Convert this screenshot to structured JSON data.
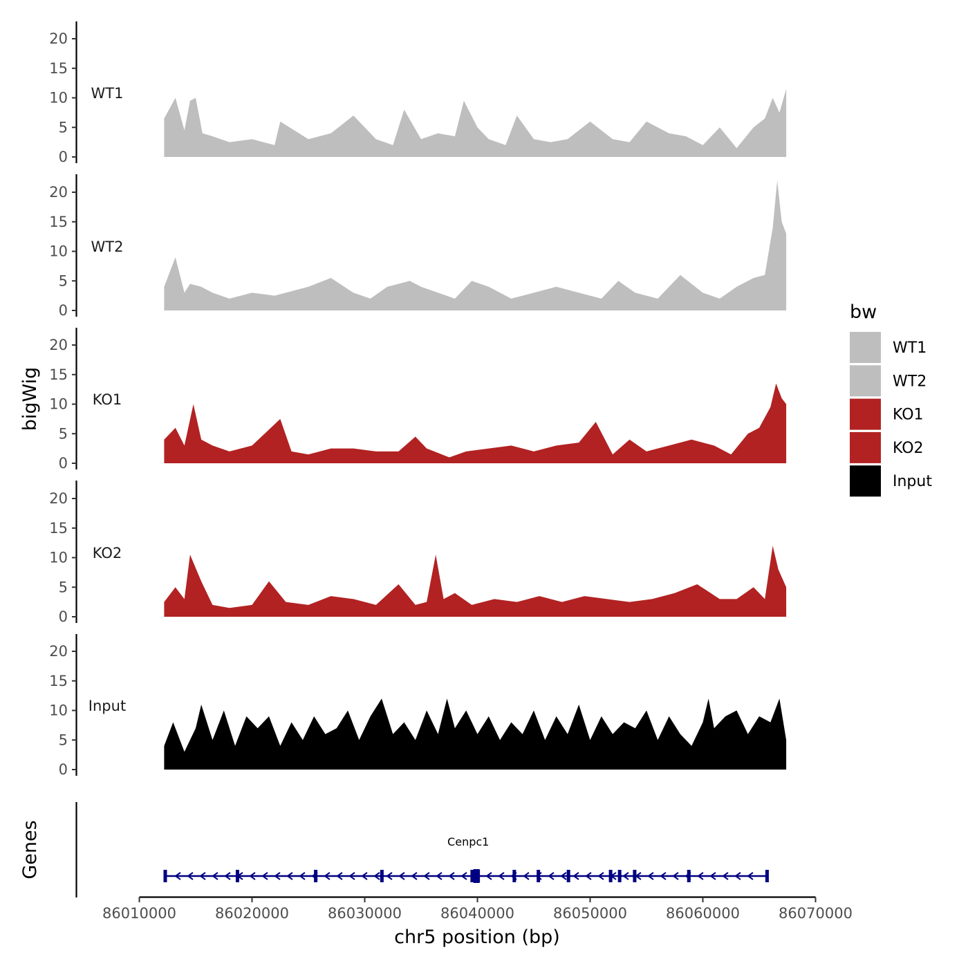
{
  "chart_data": {
    "type": "area",
    "title": "",
    "xlabel": "chr5 position (bp)",
    "ylabel": "bigWig",
    "genes_label": "Genes",
    "xlim": [
      86010000,
      86070000
    ],
    "x_ticks": [
      86010000,
      86020000,
      86030000,
      86040000,
      86050000,
      86060000,
      86070000
    ],
    "x_tick_labels": [
      "86010000",
      "86020000",
      "86030000",
      "86040000",
      "86050000",
      "86060000",
      "86070000"
    ],
    "ylim": [
      0,
      23
    ],
    "y_ticks": [
      0,
      5,
      10,
      15,
      20
    ],
    "y_tick_labels": [
      "0",
      "5",
      "10",
      "15",
      "20"
    ],
    "data_range": [
      86012200,
      86067400
    ],
    "legend": {
      "title": "bw",
      "position": "right",
      "entries": [
        {
          "label": "WT1",
          "color": "#bebebe"
        },
        {
          "label": "WT2",
          "color": "#bebebe"
        },
        {
          "label": "KO1",
          "color": "#b22222"
        },
        {
          "label": "KO2",
          "color": "#b22222"
        },
        {
          "label": "Input",
          "color": "#000000"
        }
      ]
    },
    "series": [
      {
        "name": "WT1",
        "color": "#bebebe",
        "x": [
          86012200,
          86013200,
          86014000,
          86014500,
          86015000,
          86015600,
          86016500,
          86018000,
          86020000,
          86022000,
          86022500,
          86025000,
          86027000,
          86029000,
          86031000,
          86032500,
          86033500,
          86035000,
          86036500,
          86038000,
          86038800,
          86040000,
          86041000,
          86042500,
          86043500,
          86045000,
          86046500,
          86048000,
          86050000,
          86052000,
          86053500,
          86055000,
          86057000,
          86058500,
          86060000,
          86061500,
          86063000,
          86064500,
          86065500,
          86066200,
          86066800,
          86067400
        ],
        "y": [
          6.5,
          10,
          4.5,
          9.5,
          10,
          4,
          3.5,
          2.5,
          3,
          2,
          6,
          3,
          4,
          7,
          3,
          2,
          8,
          3,
          4,
          3.5,
          9.5,
          5,
          3,
          2,
          7,
          3,
          2.5,
          3,
          6,
          3,
          2.5,
          6,
          4,
          3.5,
          2,
          5,
          1.5,
          5,
          6.5,
          10,
          7.5,
          11.5
        ]
      },
      {
        "name": "WT2",
        "color": "#bebebe",
        "x": [
          86012200,
          86013200,
          86014000,
          86014500,
          86015500,
          86016500,
          86018000,
          86020000,
          86022000,
          86025000,
          86027000,
          86029000,
          86030500,
          86032000,
          86034000,
          86035000,
          86036500,
          86038000,
          86039500,
          86041000,
          86043000,
          86045000,
          86047000,
          86049000,
          86051000,
          86052500,
          86054000,
          86056000,
          86058000,
          86060000,
          86061500,
          86063000,
          86064500,
          86065500,
          86066200,
          86066600,
          86067000,
          86067400
        ],
        "y": [
          4,
          9,
          3,
          4.5,
          4,
          3,
          2,
          3,
          2.5,
          4,
          5.5,
          3,
          2,
          4,
          5,
          4,
          3,
          2,
          5,
          4,
          2,
          3,
          4,
          3,
          2,
          5,
          3,
          2,
          6,
          3,
          2,
          4,
          5.5,
          6,
          14,
          22,
          15,
          13
        ]
      },
      {
        "name": "KO1",
        "color": "#b22222",
        "x": [
          86012200,
          86013200,
          86014000,
          86014800,
          86015500,
          86016500,
          86018000,
          86020000,
          86022500,
          86023500,
          86025000,
          86027000,
          86029000,
          86031000,
          86033000,
          86034500,
          86035500,
          86037500,
          86039000,
          86041000,
          86043000,
          86045000,
          86047000,
          86049000,
          86050500,
          86052000,
          86053500,
          86055000,
          86057000,
          86059000,
          86061000,
          86062500,
          86064000,
          86065000,
          86066000,
          86066500,
          86067000,
          86067400
        ],
        "y": [
          4,
          6,
          3,
          10,
          4,
          3,
          2,
          3,
          7.5,
          2,
          1.5,
          2.5,
          2.5,
          2,
          2,
          4.5,
          2.5,
          1,
          2,
          2.5,
          3,
          2,
          3,
          3.5,
          7,
          1.5,
          4,
          2,
          3,
          4,
          3,
          1.5,
          5,
          6,
          9.5,
          13.5,
          11,
          10
        ]
      },
      {
        "name": "KO2",
        "color": "#b22222",
        "x": [
          86012200,
          86013200,
          86014000,
          86014500,
          86015500,
          86016500,
          86018000,
          86020000,
          86021500,
          86023000,
          86025000,
          86027000,
          86029000,
          86031000,
          86033000,
          86034500,
          86035500,
          86036300,
          86037000,
          86038000,
          86039500,
          86041500,
          86043500,
          86045500,
          86047500,
          86049500,
          86051500,
          86053500,
          86055500,
          86057500,
          86059500,
          86061500,
          86063000,
          86064500,
          86065500,
          86066200,
          86066700,
          86067400
        ],
        "y": [
          2.5,
          5,
          3,
          10.5,
          6,
          2,
          1.5,
          2,
          6,
          2.5,
          2,
          3.5,
          3,
          2,
          5.5,
          2,
          2.5,
          10.5,
          3,
          4,
          2,
          3,
          2.5,
          3.5,
          2.5,
          3.5,
          3,
          2.5,
          3,
          4,
          5.5,
          3,
          3,
          5,
          3,
          12,
          8,
          5
        ]
      },
      {
        "name": "Input",
        "color": "#000000",
        "x": [
          86012200,
          86013000,
          86014000,
          86015000,
          86015500,
          86016500,
          86017500,
          86018500,
          86019500,
          86020500,
          86021500,
          86022500,
          86023500,
          86024500,
          86025500,
          86026500,
          86027500,
          86028500,
          86029500,
          86030500,
          86031500,
          86032500,
          86033500,
          86034500,
          86035500,
          86036500,
          86037300,
          86038000,
          86039000,
          86040000,
          86041000,
          86042000,
          86043000,
          86044000,
          86045000,
          86046000,
          86047000,
          86048000,
          86049000,
          86050000,
          86051000,
          86052000,
          86053000,
          86054000,
          86055000,
          86056000,
          86057000,
          86058000,
          86059000,
          86060000,
          86060500,
          86061000,
          86062000,
          86063000,
          86064000,
          86065000,
          86066000,
          86066800,
          86067400
        ],
        "y": [
          4,
          8,
          3,
          7,
          11,
          5,
          10,
          4,
          9,
          7,
          9,
          4,
          8,
          5,
          9,
          6,
          7,
          10,
          5,
          9,
          12,
          6,
          8,
          5,
          10,
          6,
          12,
          7,
          10,
          6,
          9,
          5,
          8,
          6,
          10,
          5,
          9,
          6,
          11,
          5,
          9,
          6,
          8,
          7,
          10,
          5,
          9,
          6,
          4,
          8,
          12,
          7,
          9,
          10,
          6,
          9,
          8,
          12,
          5
        ]
      }
    ],
    "genes": [
      {
        "name": "Cenpc1",
        "start": 86012300,
        "end": 86065700,
        "strand": "-",
        "color": "#000080"
      }
    ]
  }
}
